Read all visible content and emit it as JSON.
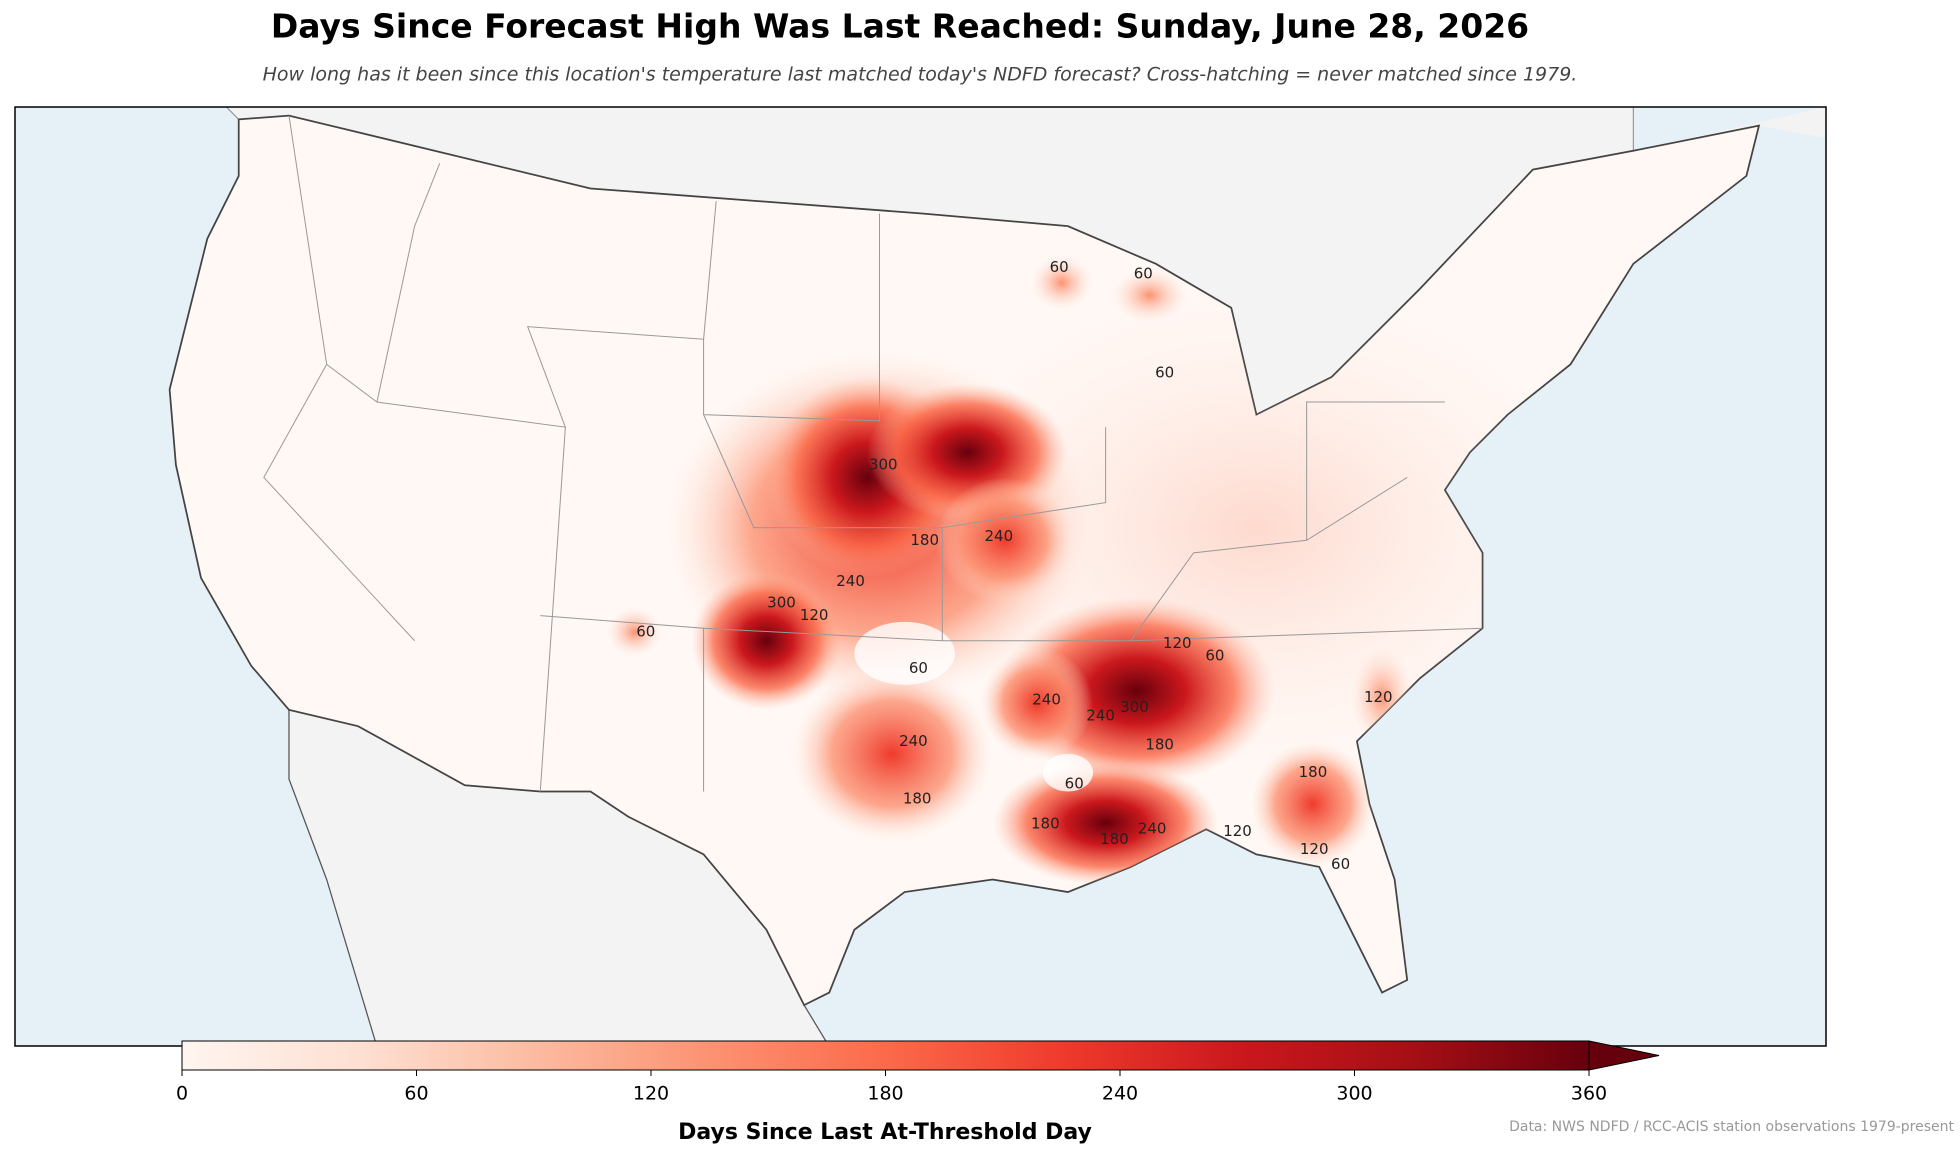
{
  "title": "Days Since Forecast High Was Last Reached: Sunday, June 28, 2026",
  "subtitle": "How long has it been since this location's temperature last matched today's NDFD forecast? Cross-hatching = never matched since 1979.",
  "map": {
    "contour_labels": [
      60,
      60,
      60,
      300,
      240,
      180,
      240,
      120,
      300,
      60,
      60,
      120,
      60,
      240,
      240,
      300,
      240,
      180,
      60,
      180,
      180,
      180,
      240,
      120,
      120,
      60,
      180,
      120
    ]
  },
  "colorbar": {
    "label": "Days Since Last At-Threshold Day",
    "lim": [
      0,
      360
    ],
    "ticks": [
      0,
      60,
      120,
      180,
      240,
      300,
      360
    ],
    "colors": [
      "#fff5f0",
      "#fee0d2",
      "#fcbba1",
      "#fc9272",
      "#fb6a4a",
      "#ef3b2c",
      "#cb181d",
      "#a50f15",
      "#67000d"
    ],
    "extend": "max"
  },
  "source": "Data: NWS NDFD / RCC-ACIS station observations 1979-present"
}
